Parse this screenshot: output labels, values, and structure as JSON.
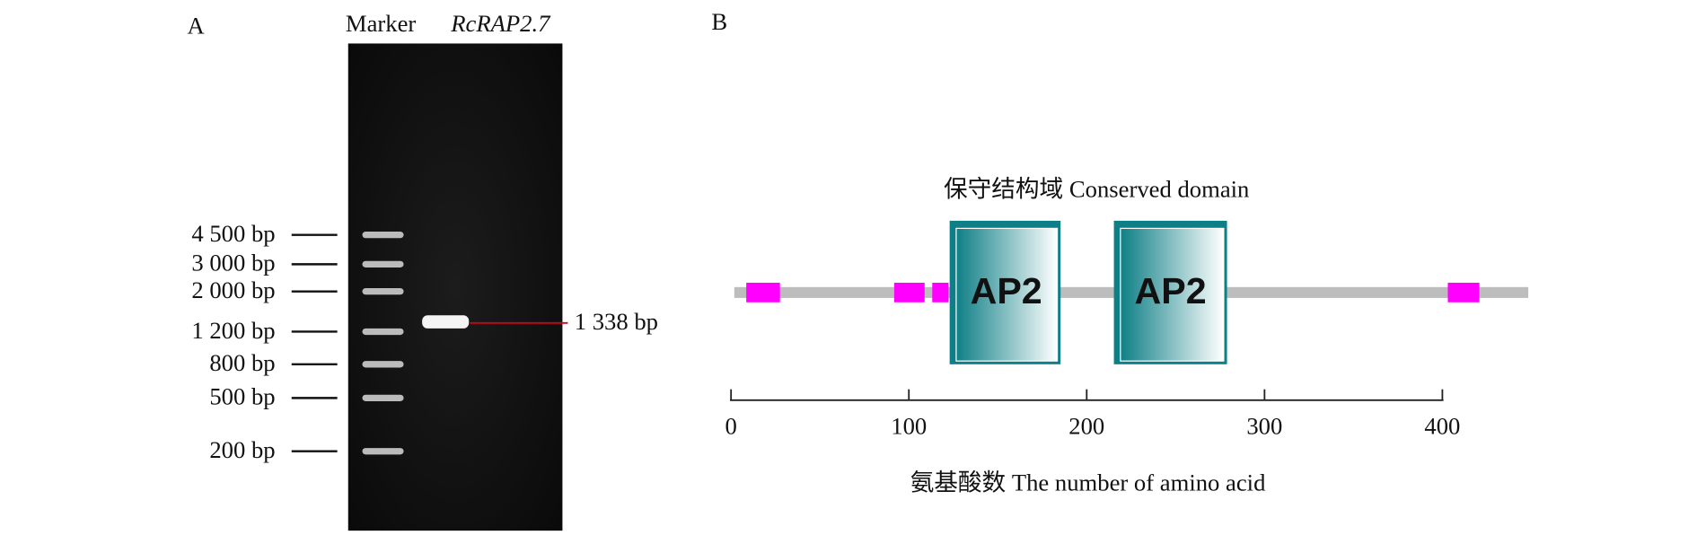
{
  "panel_a": {
    "label": "A",
    "lanes": [
      "Marker",
      "RcRAP2.7"
    ],
    "marker_bands": [
      "4 500 bp",
      "3 000 bp",
      "2 000 bp",
      "1 200 bp",
      "800 bp",
      "500 bp",
      "200 bp"
    ],
    "band_label": "1 338 bp"
  },
  "panel_b": {
    "label": "B",
    "domain_title": "保守结构域  Conserved domain",
    "domains": [
      "AP2",
      "AP2"
    ],
    "xticks": [
      0,
      100,
      200,
      300,
      400
    ],
    "xlabel": "氨基酸数  The number of amino acid"
  }
}
